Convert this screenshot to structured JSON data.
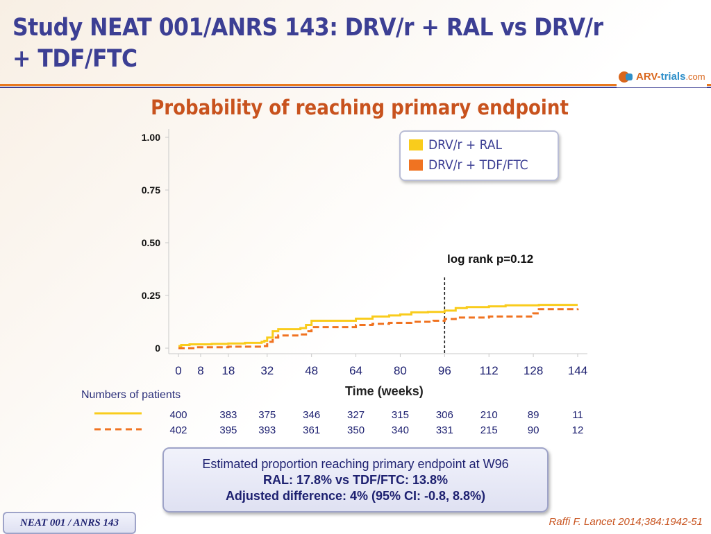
{
  "slide": {
    "title": "Study NEAT 001/ANRS 143: DRV/r + RAL vs DRV/r + TDF/FTC",
    "subtitle": "Probability of reaching primary endpoint",
    "logo": {
      "part1": "ARV-",
      "part2": "trials",
      "part3": ".com"
    },
    "colors": {
      "title": "#3c3f94",
      "accent": "#c8521d",
      "ral": "#f9cc1c",
      "tdf": "#f07321"
    }
  },
  "chart_data": {
    "type": "line",
    "subtitle": "Probability of reaching primary endpoint",
    "xlabel": "Time (weeks)",
    "ylabel": "",
    "xlim": [
      0,
      144
    ],
    "ylim": [
      0,
      1.0
    ],
    "x_ticks": [
      0,
      8,
      18,
      32,
      48,
      64,
      80,
      96,
      112,
      128,
      144
    ],
    "y_ticks": [
      {
        "value": 0,
        "label": "0"
      },
      {
        "value": 0.25,
        "label": "0.25"
      },
      {
        "value": 0.5,
        "label": "0.50"
      },
      {
        "value": 0.75,
        "label": "0.75"
      },
      {
        "value": 1.0,
        "label": "1.00"
      }
    ],
    "reference_line_x": 96,
    "annotation": "log rank p=0.12",
    "series": [
      {
        "name": "DRV/r + RAL",
        "color": "#f9cc1c",
        "style": "solid",
        "points": [
          [
            0,
            0.01
          ],
          [
            1,
            0.015
          ],
          [
            4,
            0.018
          ],
          [
            12,
            0.02
          ],
          [
            18,
            0.022
          ],
          [
            24,
            0.025
          ],
          [
            30,
            0.03
          ],
          [
            31,
            0.035
          ],
          [
            32,
            0.05
          ],
          [
            34,
            0.08
          ],
          [
            36,
            0.09
          ],
          [
            44,
            0.095
          ],
          [
            46,
            0.11
          ],
          [
            48,
            0.13
          ],
          [
            60,
            0.13
          ],
          [
            64,
            0.14
          ],
          [
            70,
            0.15
          ],
          [
            76,
            0.155
          ],
          [
            80,
            0.16
          ],
          [
            84,
            0.17
          ],
          [
            90,
            0.172
          ],
          [
            96,
            0.178
          ],
          [
            100,
            0.19
          ],
          [
            104,
            0.195
          ],
          [
            112,
            0.198
          ],
          [
            118,
            0.203
          ],
          [
            130,
            0.205
          ],
          [
            144,
            0.205
          ]
        ]
      },
      {
        "name": "DRV/r + TDF/FTC",
        "color": "#f07321",
        "style": "dashed",
        "points": [
          [
            0,
            0.0
          ],
          [
            6,
            0.004
          ],
          [
            18,
            0.007
          ],
          [
            30,
            0.01
          ],
          [
            32,
            0.03
          ],
          [
            34,
            0.05
          ],
          [
            36,
            0.06
          ],
          [
            44,
            0.065
          ],
          [
            46,
            0.08
          ],
          [
            48,
            0.1
          ],
          [
            62,
            0.1
          ],
          [
            64,
            0.11
          ],
          [
            70,
            0.115
          ],
          [
            76,
            0.12
          ],
          [
            84,
            0.125
          ],
          [
            92,
            0.13
          ],
          [
            96,
            0.138
          ],
          [
            100,
            0.145
          ],
          [
            112,
            0.15
          ],
          [
            126,
            0.15
          ],
          [
            128,
            0.165
          ],
          [
            130,
            0.185
          ],
          [
            144,
            0.188
          ]
        ]
      }
    ]
  },
  "legend": [
    {
      "label": "DRV/r + RAL",
      "color": "#f9cc1c"
    },
    {
      "label": "DRV/r + TDF/FTC",
      "color": "#f07321"
    }
  ],
  "risk_table": {
    "title": "Numbers of patients",
    "weeks": [
      0,
      18,
      32,
      48,
      64,
      80,
      96,
      112,
      128,
      144
    ],
    "rows": [
      {
        "series": "DRV/r + RAL",
        "values": [
          "400",
          "383",
          "375",
          "346",
          "327",
          "315",
          "306",
          "210",
          "89",
          "11"
        ]
      },
      {
        "series": "DRV/r + TDF/FTC",
        "values": [
          "402",
          "395",
          "393",
          "361",
          "350",
          "340",
          "331",
          "215",
          "90",
          "12"
        ]
      }
    ]
  },
  "summary": {
    "line1": "Estimated proportion reaching primary endpoint at W96",
    "line2": "RAL: 17.8% vs TDF/FTC: 13.8%",
    "line3": "Adjusted difference: 4% (95% CI: -0.8, 8.8%)"
  },
  "footer": {
    "tag": "NEAT 001 / ANRS 143",
    "citation": "Raffi F. Lancet 2014;384:1942-51"
  }
}
